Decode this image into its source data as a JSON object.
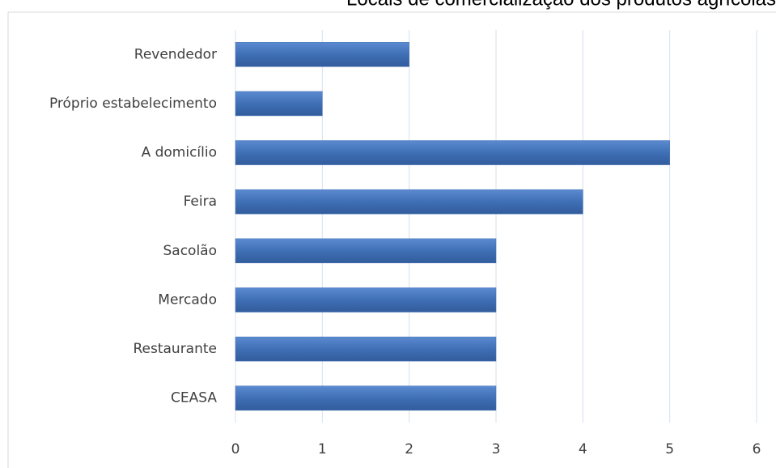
{
  "chart_data": {
    "type": "bar",
    "orientation": "horizontal",
    "title": "Locais de comercialização dos produtos agrícolas",
    "categories": [
      "Revendedor",
      "Próprio estabelecimento",
      "A domicílio",
      "Feira",
      "Sacolão",
      "Mercado",
      "Restaurante",
      "CEASA"
    ],
    "values": [
      2,
      1,
      5,
      4,
      3,
      3,
      3,
      3
    ],
    "color": "#3f6fb5",
    "xlim": [
      0,
      6
    ],
    "xticks": [
      0,
      1,
      2,
      3,
      4,
      5,
      6
    ],
    "grid": true
  }
}
